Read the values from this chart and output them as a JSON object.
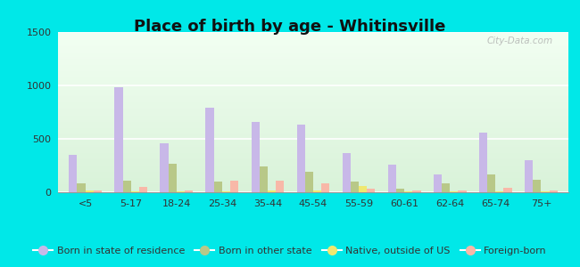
{
  "title": "Place of birth by age - Whitinsville",
  "categories": [
    "<5",
    "5-17",
    "18-24",
    "25-34",
    "35-44",
    "45-54",
    "55-59",
    "60-61",
    "62-64",
    "65-74",
    "75+"
  ],
  "series": {
    "Born in state of residence": [
      350,
      980,
      460,
      790,
      660,
      630,
      370,
      260,
      170,
      560,
      300
    ],
    "Born in other state": [
      80,
      110,
      270,
      100,
      240,
      190,
      100,
      30,
      80,
      170,
      120
    ],
    "Native, outside of US": [
      15,
      5,
      10,
      5,
      20,
      15,
      60,
      10,
      5,
      10,
      10
    ],
    "Foreign-born": [
      20,
      50,
      20,
      110,
      110,
      80,
      30,
      20,
      20,
      40,
      20
    ]
  },
  "colors": {
    "Born in state of residence": "#c8b8e8",
    "Born in other state": "#b8c888",
    "Native, outside of US": "#f0e870",
    "Foreign-born": "#f8b8a8"
  },
  "ylim": [
    0,
    1500
  ],
  "yticks": [
    0,
    500,
    1000,
    1500
  ],
  "outer_bg": "#00e8e8",
  "bar_width": 0.18,
  "title_fontsize": 13,
  "legend_fontsize": 8,
  "axis_fontsize": 8,
  "watermark": "City-Data.com"
}
